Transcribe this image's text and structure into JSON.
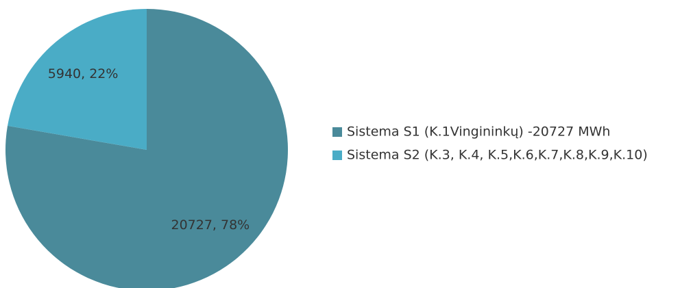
{
  "chart_data": {
    "type": "pie",
    "categories": [
      "Sistema S1 (K.1Vingininkų) -20727 MWh",
      "Sistema S2 (K.3, K.4, K.5,K.6,K.7,K.8,K.9,K.10)"
    ],
    "values": [
      20727,
      5940
    ],
    "value_labels": [
      "20727, 78%",
      "5940, 22%"
    ],
    "colors": [
      "#4a8a9a",
      "#4aacc6"
    ],
    "legend": "right"
  }
}
